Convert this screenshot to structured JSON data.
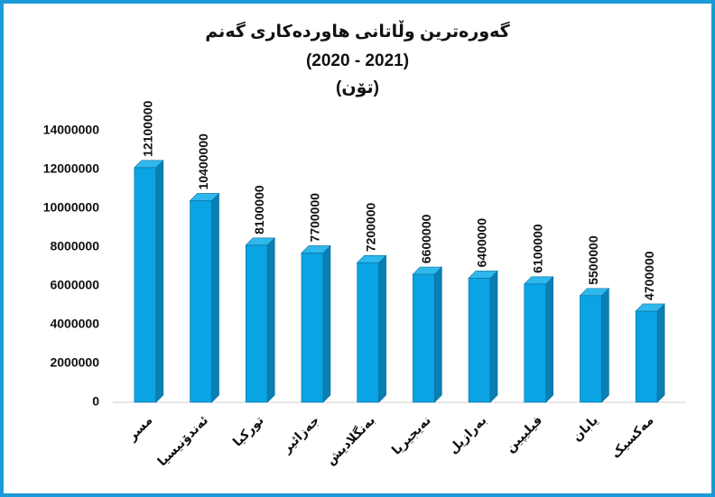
{
  "chart_data": {
    "type": "bar3d",
    "title": "گەورەترین وڵاتانی هاوردەکاری گەنم",
    "subtitle": "(2020 - 2021)",
    "unit": "(تۆن)",
    "categories": [
      "مسر",
      "ئەندۆنیسیا",
      "تورکیا",
      "جەزائیر",
      "بەنگلادیش",
      "نەیجیریا",
      "بەرازیل",
      "فیلیپین",
      "یابان",
      "مەکسیک"
    ],
    "values": [
      12100000,
      10400000,
      8100000,
      7700000,
      7200000,
      6600000,
      6400000,
      6100000,
      5500000,
      4700000
    ],
    "color": "#0aa3e3",
    "ylim": [
      0,
      14000000
    ],
    "yticks": [
      0,
      2000000,
      4000000,
      6000000,
      8000000,
      10000000,
      12000000,
      14000000
    ],
    "grid": false
  }
}
